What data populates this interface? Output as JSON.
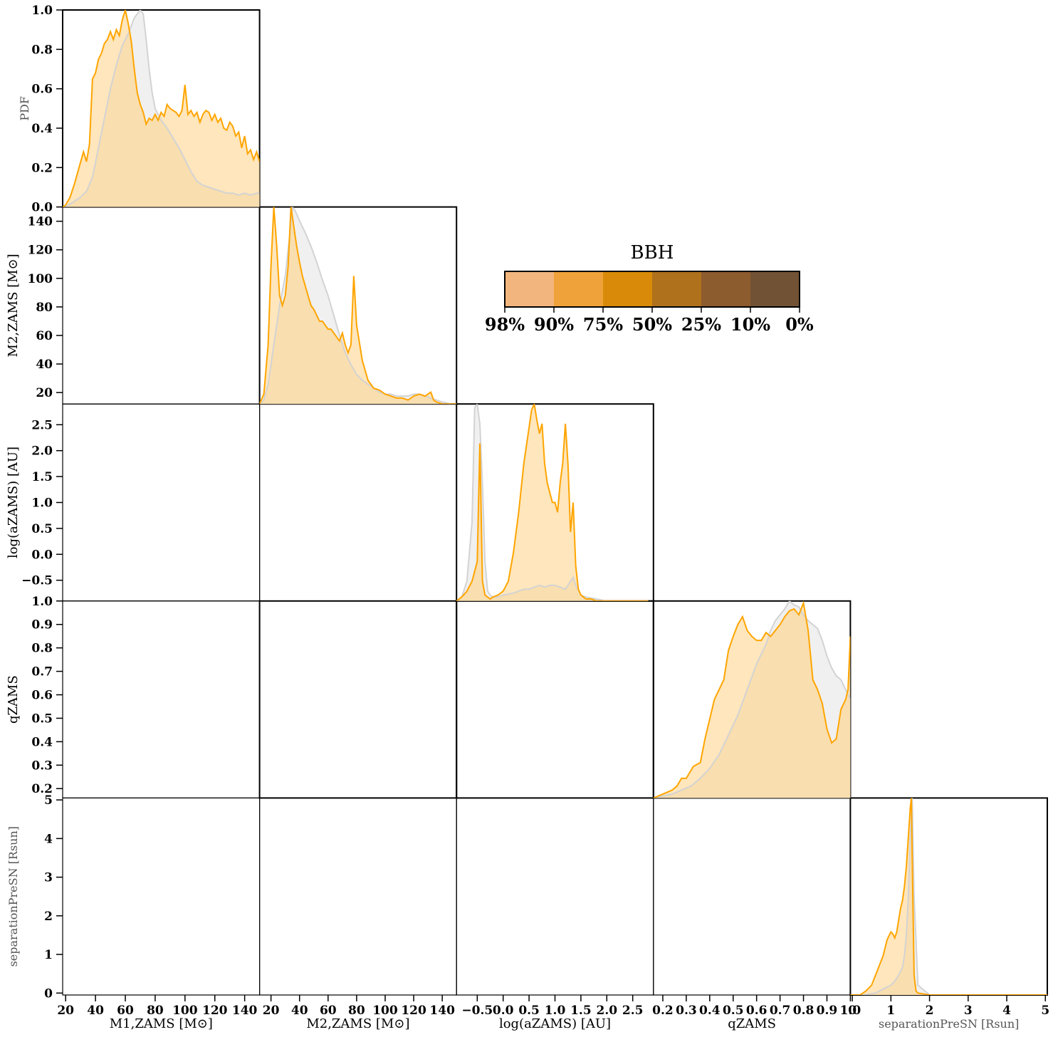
{
  "chart_data": {
    "type": "area",
    "title": "",
    "variables": [
      {
        "key": "m1",
        "label": "M1,ZAMS [M⊙]",
        "ticks": [
          "20",
          "40",
          "60",
          "80",
          "100",
          "120",
          "140"
        ],
        "tick_values": [
          20,
          40,
          60,
          80,
          100,
          120,
          140
        ],
        "range": [
          18,
          150
        ]
      },
      {
        "key": "m2",
        "label": "M2,ZAMS [M⊙]",
        "ticks": [
          "20",
          "40",
          "60",
          "80",
          "100",
          "120",
          "140"
        ],
        "tick_values": [
          20,
          40,
          60,
          80,
          100,
          120,
          140
        ],
        "range": [
          12,
          150
        ]
      },
      {
        "key": "loga",
        "label": "log(aZAMS) [AU]",
        "ticks": [
          "−0.5",
          "0.0",
          "0.5",
          "1.0",
          "1.5",
          "2.0",
          "2.5"
        ],
        "tick_values": [
          -0.5,
          0.0,
          0.5,
          1.0,
          1.5,
          2.0,
          2.5
        ],
        "range": [
          -0.9,
          2.9
        ]
      },
      {
        "key": "q",
        "label": "qZAMS",
        "ticks": [
          "0.2",
          "0.3",
          "0.4",
          "0.5",
          "0.6",
          "0.7",
          "0.8",
          "0.9",
          "1.0"
        ],
        "tick_values": [
          0.2,
          0.3,
          0.4,
          0.5,
          0.6,
          0.7,
          0.8,
          0.9,
          1.0
        ],
        "range": [
          0.16,
          1.0
        ]
      },
      {
        "key": "sep",
        "label": "separationPreSN [Rsun]",
        "ticks": [
          "0",
          "1",
          "2",
          "3",
          "4",
          "5"
        ],
        "tick_values": [
          0,
          1,
          2,
          3,
          4,
          5
        ],
        "range": [
          -0.05,
          5.05
        ]
      }
    ],
    "pdf_label": "PDF",
    "pdf_ticks": [
      "0.0",
      "0.2",
      "0.4",
      "0.6",
      "0.8",
      "1.0"
    ],
    "pdf_tick_values": [
      0.0,
      0.2,
      0.4,
      0.6,
      0.8,
      1.0
    ],
    "legend": {
      "title": "BBH",
      "labels": [
        "98%",
        "90%",
        "75%",
        "50%",
        "25%",
        "10%",
        "0%"
      ],
      "colors": [
        "#f2b57e",
        "#f0a23a",
        "#d98a08",
        "#b0711c",
        "#8c5b2e",
        "#725235"
      ]
    },
    "colors": {
      "foreground_line": "#ffa500",
      "foreground_fill": "#ffe2b0",
      "background_line": "#d3d3d3",
      "background_fill": "#f0f0f0",
      "overlap_fill": "#f5d8a6"
    },
    "diagonals": {
      "m1": {
        "foreground": {
          "x": [
            18,
            20,
            23,
            26,
            29,
            32,
            34,
            36,
            38,
            40,
            42,
            44,
            46,
            48,
            50,
            52,
            54,
            56,
            58,
            60,
            62,
            64,
            66,
            68,
            70,
            72,
            74,
            76,
            78,
            80,
            82,
            84,
            86,
            88,
            90,
            92,
            94,
            96,
            98,
            100,
            102,
            104,
            106,
            108,
            110,
            112,
            114,
            116,
            118,
            120,
            122,
            124,
            126,
            128,
            130,
            132,
            134,
            136,
            138,
            140,
            142,
            144,
            146,
            148,
            150
          ],
          "y": [
            0.0,
            0.01,
            0.05,
            0.12,
            0.2,
            0.28,
            0.23,
            0.32,
            0.65,
            0.68,
            0.75,
            0.78,
            0.83,
            0.85,
            0.89,
            0.85,
            0.9,
            0.87,
            0.95,
            1.0,
            0.93,
            0.84,
            0.7,
            0.58,
            0.52,
            0.48,
            0.42,
            0.45,
            0.44,
            0.47,
            0.44,
            0.48,
            0.46,
            0.52,
            0.5,
            0.49,
            0.48,
            0.46,
            0.49,
            0.62,
            0.47,
            0.49,
            0.46,
            0.48,
            0.43,
            0.47,
            0.49,
            0.48,
            0.44,
            0.47,
            0.43,
            0.45,
            0.4,
            0.39,
            0.43,
            0.41,
            0.36,
            0.38,
            0.3,
            0.36,
            0.27,
            0.29,
            0.24,
            0.28,
            0.23
          ]
        },
        "background": {
          "x": [
            18,
            22,
            26,
            30,
            34,
            38,
            42,
            46,
            50,
            54,
            58,
            62,
            66,
            70,
            72,
            74,
            76,
            78,
            80,
            84,
            88,
            92,
            96,
            100,
            104,
            108,
            112,
            116,
            120,
            124,
            128,
            132,
            136,
            140,
            144,
            148,
            150
          ],
          "y": [
            0.0,
            0.01,
            0.03,
            0.05,
            0.08,
            0.15,
            0.3,
            0.45,
            0.6,
            0.72,
            0.82,
            0.88,
            0.96,
            1.0,
            0.98,
            0.85,
            0.7,
            0.58,
            0.5,
            0.44,
            0.4,
            0.35,
            0.3,
            0.24,
            0.18,
            0.13,
            0.11,
            0.1,
            0.09,
            0.08,
            0.07,
            0.07,
            0.06,
            0.07,
            0.06,
            0.07,
            0.07
          ]
        }
      },
      "m2": {
        "foreground": {
          "x": [
            12,
            15,
            18,
            20,
            22,
            24,
            26,
            28,
            30,
            32,
            34,
            36,
            38,
            40,
            42,
            44,
            46,
            48,
            50,
            52,
            54,
            56,
            58,
            60,
            62,
            64,
            66,
            68,
            70,
            72,
            74,
            76,
            78,
            80,
            84,
            88,
            92,
            96,
            100,
            104,
            108,
            112,
            116,
            120,
            124,
            128,
            132,
            134,
            136,
            140,
            146,
            150
          ],
          "y": [
            0.0,
            0.05,
            0.3,
            0.7,
            1.0,
            0.8,
            0.55,
            0.5,
            0.55,
            0.7,
            1.0,
            0.9,
            0.8,
            0.72,
            0.65,
            0.6,
            0.55,
            0.5,
            0.48,
            0.45,
            0.42,
            0.42,
            0.4,
            0.38,
            0.38,
            0.36,
            0.34,
            0.32,
            0.36,
            0.3,
            0.26,
            0.3,
            0.65,
            0.4,
            0.22,
            0.12,
            0.08,
            0.07,
            0.05,
            0.04,
            0.03,
            0.03,
            0.02,
            0.04,
            0.05,
            0.04,
            0.06,
            0.02,
            0.01,
            0.0,
            0.0,
            0.0
          ]
        },
        "background": {
          "x": [
            12,
            15,
            18,
            22,
            26,
            30,
            33,
            35,
            37,
            40,
            44,
            48,
            52,
            56,
            60,
            64,
            68,
            72,
            76,
            80,
            84,
            88,
            92,
            96,
            100,
            104,
            108,
            112,
            116,
            120,
            124,
            128,
            132,
            136,
            140,
            146,
            150
          ],
          "y": [
            0.0,
            0.02,
            0.1,
            0.3,
            0.5,
            0.65,
            0.85,
            1.0,
            0.98,
            0.93,
            0.87,
            0.8,
            0.72,
            0.63,
            0.55,
            0.45,
            0.35,
            0.26,
            0.2,
            0.15,
            0.12,
            0.1,
            0.08,
            0.06,
            0.05,
            0.05,
            0.04,
            0.04,
            0.04,
            0.05,
            0.05,
            0.04,
            0.03,
            0.02,
            0.01,
            0.0,
            0.0
          ]
        }
      },
      "loga": {
        "foreground": {
          "x": [
            -0.9,
            -0.8,
            -0.7,
            -0.6,
            -0.5,
            -0.45,
            -0.4,
            -0.35,
            -0.3,
            -0.25,
            -0.2,
            -0.1,
            0.0,
            0.1,
            0.2,
            0.3,
            0.4,
            0.5,
            0.55,
            0.6,
            0.65,
            0.7,
            0.75,
            0.8,
            0.85,
            0.9,
            0.95,
            1.0,
            1.05,
            1.1,
            1.15,
            1.2,
            1.25,
            1.3,
            1.35,
            1.4,
            1.45,
            1.5,
            1.55,
            1.6,
            1.7,
            1.8,
            2.0,
            2.2,
            2.4,
            2.6,
            2.8
          ],
          "y": [
            0.0,
            0.02,
            0.05,
            0.1,
            0.2,
            0.8,
            0.1,
            0.03,
            0.02,
            0.01,
            0.02,
            0.03,
            0.05,
            0.1,
            0.25,
            0.45,
            0.7,
            0.88,
            0.97,
            1.0,
            0.92,
            0.85,
            0.9,
            0.7,
            0.6,
            0.55,
            0.5,
            0.5,
            0.45,
            0.6,
            0.7,
            0.9,
            0.7,
            0.35,
            0.5,
            0.18,
            0.06,
            0.03,
            0.02,
            0.01,
            0.01,
            0.0,
            0.0,
            0.0,
            0.0,
            0.0,
            0.0
          ]
        },
        "background": {
          "x": [
            -0.9,
            -0.8,
            -0.7,
            -0.6,
            -0.55,
            -0.5,
            -0.45,
            -0.4,
            -0.35,
            -0.3,
            -0.25,
            -0.2,
            -0.1,
            0.0,
            0.2,
            0.4,
            0.5,
            0.6,
            0.7,
            0.8,
            0.9,
            1.0,
            1.1,
            1.2,
            1.3,
            1.35,
            1.4,
            1.5,
            1.6,
            1.8,
            2.0,
            2.4,
            2.8
          ],
          "y": [
            0.0,
            0.02,
            0.1,
            0.4,
            0.98,
            1.0,
            0.9,
            0.6,
            0.2,
            0.05,
            0.03,
            0.02,
            0.02,
            0.03,
            0.04,
            0.06,
            0.06,
            0.07,
            0.08,
            0.07,
            0.08,
            0.08,
            0.07,
            0.06,
            0.1,
            0.12,
            0.08,
            0.03,
            0.02,
            0.01,
            0.0,
            0.0,
            0.0
          ]
        }
      },
      "q": {
        "foreground": {
          "x": [
            0.16,
            0.2,
            0.24,
            0.26,
            0.28,
            0.3,
            0.33,
            0.36,
            0.38,
            0.4,
            0.42,
            0.44,
            0.46,
            0.48,
            0.5,
            0.52,
            0.54,
            0.56,
            0.58,
            0.6,
            0.62,
            0.64,
            0.66,
            0.68,
            0.7,
            0.72,
            0.74,
            0.76,
            0.78,
            0.8,
            0.82,
            0.84,
            0.86,
            0.88,
            0.9,
            0.92,
            0.94,
            0.96,
            0.98,
            0.99,
            1.0
          ],
          "y": [
            0.0,
            0.02,
            0.04,
            0.06,
            0.1,
            0.1,
            0.16,
            0.18,
            0.3,
            0.4,
            0.5,
            0.55,
            0.6,
            0.75,
            0.82,
            0.88,
            0.92,
            0.85,
            0.82,
            0.8,
            0.8,
            0.84,
            0.82,
            0.85,
            0.88,
            0.92,
            0.95,
            0.96,
            0.93,
            0.99,
            0.85,
            0.6,
            0.55,
            0.48,
            0.35,
            0.28,
            0.3,
            0.45,
            0.5,
            0.55,
            0.82
          ]
        },
        "background": {
          "x": [
            0.16,
            0.2,
            0.24,
            0.28,
            0.32,
            0.36,
            0.4,
            0.44,
            0.48,
            0.52,
            0.56,
            0.6,
            0.64,
            0.66,
            0.68,
            0.7,
            0.72,
            0.74,
            0.76,
            0.78,
            0.8,
            0.82,
            0.84,
            0.86,
            0.88,
            0.9,
            0.92,
            0.94,
            0.96,
            0.98,
            1.0
          ],
          "y": [
            0.0,
            0.01,
            0.02,
            0.04,
            0.06,
            0.1,
            0.15,
            0.22,
            0.32,
            0.42,
            0.55,
            0.68,
            0.78,
            0.85,
            0.9,
            0.93,
            0.96,
            1.0,
            0.98,
            0.97,
            0.93,
            0.9,
            0.88,
            0.86,
            0.8,
            0.72,
            0.66,
            0.62,
            0.6,
            0.55,
            0.5
          ]
        }
      },
      "sep": {
        "foreground": {
          "x": [
            -0.05,
            0.2,
            0.35,
            0.5,
            0.6,
            0.7,
            0.8,
            0.9,
            0.95,
            1.0,
            1.05,
            1.1,
            1.15,
            1.2,
            1.25,
            1.3,
            1.35,
            1.4,
            1.45,
            1.5,
            1.53,
            1.56,
            1.6,
            1.65,
            1.7,
            2.0,
            3.0,
            4.0,
            5.05
          ],
          "y": [
            0.0,
            0.0,
            0.02,
            0.05,
            0.1,
            0.15,
            0.2,
            0.28,
            0.3,
            0.32,
            0.31,
            0.29,
            0.32,
            0.38,
            0.44,
            0.48,
            0.55,
            0.65,
            0.8,
            0.95,
            1.0,
            0.6,
            0.1,
            0.02,
            0.01,
            0.0,
            0.0,
            0.0,
            0.0
          ]
        },
        "background": {
          "x": [
            -0.05,
            0.3,
            0.6,
            0.8,
            1.0,
            1.1,
            1.2,
            1.3,
            1.35,
            1.4,
            1.45,
            1.5,
            1.55,
            1.6,
            1.7,
            2.0,
            3.0,
            5.05
          ],
          "y": [
            0.0,
            0.0,
            0.01,
            0.03,
            0.05,
            0.07,
            0.1,
            0.14,
            0.2,
            0.3,
            0.5,
            0.8,
            1.0,
            0.5,
            0.05,
            0.0,
            0.0,
            0.0
          ]
        }
      }
    }
  }
}
